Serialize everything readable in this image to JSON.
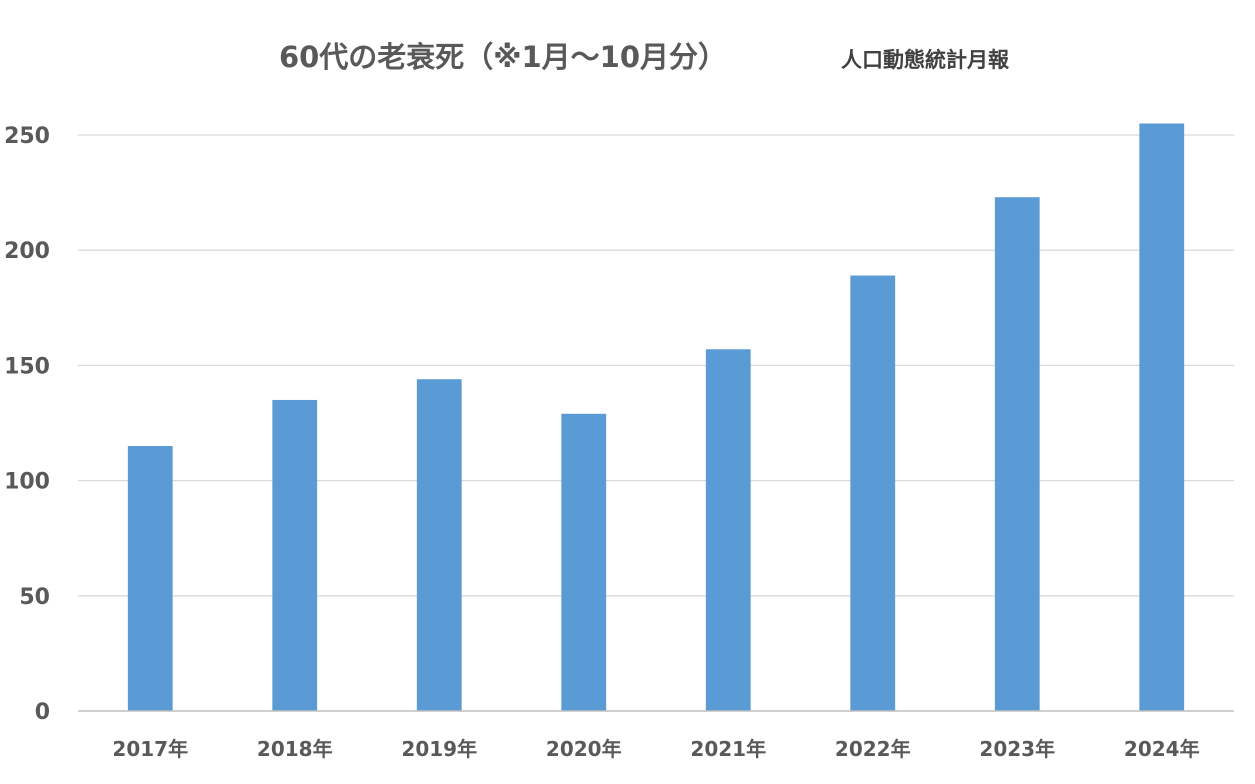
{
  "chart_data": {
    "type": "bar",
    "title": "60代の老衰死（※1月～10月分）",
    "subtitle": "人口動態統計月報",
    "xlabel": "",
    "ylabel": "",
    "categories": [
      "2017年",
      "2018年",
      "2019年",
      "2020年",
      "2021年",
      "2022年",
      "2023年",
      "2024年"
    ],
    "values": [
      115,
      135,
      144,
      129,
      157,
      189,
      223,
      255
    ],
    "ylim": [
      0,
      250
    ],
    "yticks": [
      0,
      50,
      100,
      150,
      200,
      250
    ],
    "grid": true,
    "legend": "none",
    "colors": {
      "bar": "#5b9bd5"
    }
  }
}
